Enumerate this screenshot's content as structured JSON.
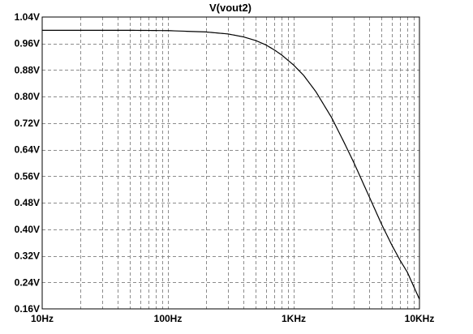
{
  "chart_data": {
    "type": "line",
    "title": "V(vout2)",
    "xscale": "log",
    "xlim": [
      10,
      10000
    ],
    "ylim": [
      0.16,
      1.04
    ],
    "x_ticks": [
      10,
      100,
      1000,
      10000
    ],
    "x_tick_labels": [
      "10Hz",
      "100Hz",
      "1KHz",
      "10KHz"
    ],
    "y_ticks": [
      1.04,
      0.96,
      0.88,
      0.8,
      0.72,
      0.64,
      0.56,
      0.48,
      0.4,
      0.32,
      0.24,
      0.16
    ],
    "y_tick_labels": [
      "1.04V",
      "0.96V",
      "0.88V",
      "0.80V",
      "0.72V",
      "0.64V",
      "0.56V",
      "0.48V",
      "0.40V",
      "0.32V",
      "0.24V",
      "0.16V"
    ],
    "grid": true,
    "series": [
      {
        "name": "V(vout2)",
        "color": "#000000",
        "x": [
          10,
          20,
          50,
          100,
          200,
          300,
          400,
          500,
          600,
          700,
          800,
          1000,
          1200,
          1500,
          2000,
          2500,
          3000,
          4000,
          5000,
          6000,
          7000,
          8000,
          10000
        ],
        "y": [
          1.0,
          1.0,
          1.0,
          0.999,
          0.995,
          0.989,
          0.98,
          0.969,
          0.956,
          0.941,
          0.926,
          0.895,
          0.864,
          0.815,
          0.737,
          0.664,
          0.602,
          0.497,
          0.415,
          0.354,
          0.307,
          0.271,
          0.189
        ]
      }
    ]
  }
}
